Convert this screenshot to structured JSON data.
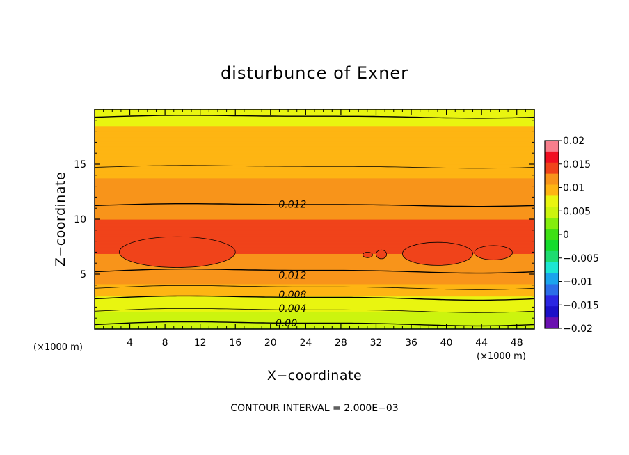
{
  "chart_data": {
    "type": "heatmap",
    "title": "disturbunce of Exner",
    "xlabel": "X−coordinate",
    "ylabel": "Z−coordinate",
    "x_unit_left": "(×1000 m)",
    "x_unit_right": "(×1000 m)",
    "xlim": [
      0,
      50
    ],
    "ylim": [
      0,
      20
    ],
    "x_ticks": [
      4,
      8,
      12,
      16,
      20,
      24,
      28,
      32,
      36,
      40,
      44,
      48
    ],
    "x_tick_labels": [
      "4",
      "8",
      "12",
      "16",
      "20",
      "24",
      "28",
      "32",
      "36",
      "40",
      "44",
      "48"
    ],
    "y_ticks": [
      5,
      10,
      15
    ],
    "y_tick_labels": [
      "5",
      "10",
      "15"
    ],
    "note": "CONTOUR INTERVAL = 2.000E−03",
    "contour_interval": 0.002,
    "colorbar": {
      "min": -0.02,
      "max": 0.02,
      "ticks": [
        0.02,
        0.015,
        0.01,
        0.005,
        0,
        -0.005,
        -0.01,
        -0.015,
        -0.02
      ],
      "tick_labels": [
        "0.02",
        "0.015",
        "0.01",
        "0.005",
        "0",
        "−0.005",
        "−0.01",
        "−0.015",
        "−0.02"
      ],
      "colors": [
        "#f77e8c",
        "#f00e21",
        "#f0431a",
        "#f8941a",
        "#feb513",
        "#e9f510",
        "#ccf40e",
        "#84ee0d",
        "#3ee014",
        "#14dc2c",
        "#1ddc70",
        "#1ce6d2",
        "#1aa4ec",
        "#2b6de8",
        "#2b26e2",
        "#1c10c8",
        "#6a10b0"
      ]
    },
    "contour_labels": [
      {
        "text": "0.012",
        "x": 22.5,
        "z": 11.3
      },
      {
        "text": "0.012",
        "x": 22.5,
        "z": 4.85
      },
      {
        "text": "0.008",
        "x": 22.5,
        "z": 3.1
      },
      {
        "text": "0.004",
        "x": 22.5,
        "z": 1.85
      },
      {
        "text": "0.00",
        "x": 21.8,
        "z": 0.5
      }
    ],
    "profile": {
      "z": [
        0.0,
        0.5,
        0.9,
        1.4,
        1.9,
        2.4,
        2.9,
        3.3,
        3.7,
        4.1,
        4.7,
        5.3,
        6.5,
        8.0,
        9.5,
        11.3,
        13.5,
        15.5,
        17.3,
        20.0
      ],
      "value": [
        0.0033,
        0.004,
        0.0047,
        0.0055,
        0.0063,
        0.0072,
        0.0081,
        0.009,
        0.0098,
        0.0106,
        0.0114,
        0.012,
        0.0127,
        0.0137,
        0.0133,
        0.012,
        0.0107,
        0.0096,
        0.0086,
        0.0078
      ]
    },
    "maxima_above": 0.014,
    "maxima_regions": [
      {
        "x": [
          2.8,
          16.0
        ],
        "z": [
          5.6,
          8.4
        ]
      },
      {
        "x": [
          30.5,
          31.6
        ],
        "z": [
          6.5,
          7.0
        ]
      },
      {
        "x": [
          32.0,
          33.2
        ],
        "z": [
          6.4,
          7.2
        ]
      },
      {
        "x": [
          35.0,
          43.0
        ],
        "z": [
          5.8,
          7.9
        ]
      },
      {
        "x": [
          43.2,
          47.5
        ],
        "z": [
          6.3,
          7.6
        ]
      }
    ]
  }
}
